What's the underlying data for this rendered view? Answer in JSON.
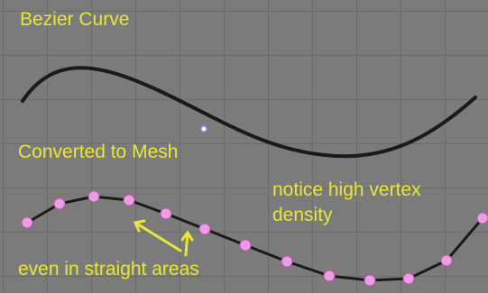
{
  "viewport": {
    "background_color": "#7b7b7b",
    "grid_color": "#5f5f5f",
    "annotation_color": "#e9e63a",
    "curve_color": "#1a1a1a",
    "vertex_color": "#f09ae8"
  },
  "annotations": {
    "bezier_curve": "Bezier Curve",
    "converted_to_mesh": "Converted to Mesh",
    "notice_line1": "notice high vertex",
    "notice_line2": "density",
    "even_in_straight": "even in straight areas"
  },
  "bezier_object": {
    "type": "curve",
    "selected": false
  },
  "mesh_object": {
    "type": "mesh",
    "vertex_count": 13
  },
  "cursor": {
    "icon": "3d-cursor-icon"
  }
}
